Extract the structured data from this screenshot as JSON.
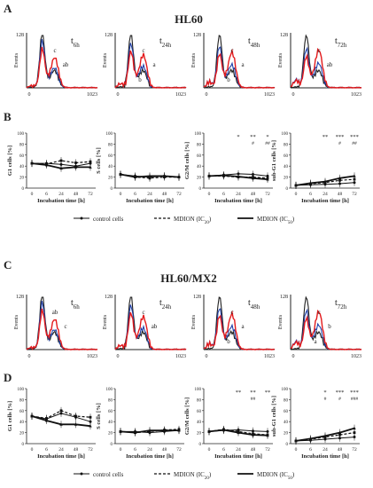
{
  "figure": {
    "panel_letters": [
      "A",
      "B",
      "C",
      "D"
    ],
    "titles": {
      "A": "HL60",
      "C": "HL60/MX2"
    },
    "legend": {
      "items": [
        {
          "label": "control cells",
          "style": "solid-dot"
        },
        {
          "label": "MDION (IC",
          "sub": "20",
          "tail": ")",
          "style": "dashed"
        },
        {
          "label": "MDION (IC",
          "sub": "50",
          "tail": ")",
          "style": "solid-thick"
        }
      ]
    }
  },
  "histograms": {
    "ylabel": "Events",
    "ymax_label": "128",
    "x_left_label": "0",
    "x_right_label": "1023",
    "colors": {
      "control": "#1f1f1f",
      "ic20": "#e31a1c",
      "ic50": "#1f3fa8"
    },
    "timepoints": [
      {
        "main": "t",
        "sub": "6h"
      },
      {
        "main": "t",
        "sub": "24h"
      },
      {
        "main": "t",
        "sub": "48h"
      },
      {
        "main": "t",
        "sub": "72h"
      }
    ],
    "A": [
      {
        "labels": [
          "c",
          "ab"
        ]
      },
      {
        "labels": [
          "c",
          "a",
          "b"
        ]
      },
      {
        "labels": [
          "c",
          "a",
          "b"
        ]
      },
      {
        "labels": [
          "c",
          "ab"
        ]
      }
    ],
    "C": [
      {
        "labels": [
          "ab",
          "c"
        ]
      },
      {
        "labels": [
          "c",
          "ab"
        ]
      },
      {
        "labels": [
          "c",
          "a",
          "b"
        ]
      },
      {
        "labels": [
          "c",
          "b",
          "a"
        ]
      }
    ]
  },
  "chart_data": [
    {
      "type": "line",
      "panel": "B",
      "ylabel": "G1 cells [%]",
      "xlabel": "Incubation time [h]",
      "ylim": [
        0,
        100
      ],
      "yticks": [
        0,
        20,
        40,
        60,
        80,
        100
      ],
      "categories": [
        "0",
        "6",
        "24",
        "48",
        "72"
      ],
      "series": [
        {
          "name": "control cells",
          "values": [
            45,
            45,
            43,
            40,
            45
          ]
        },
        {
          "name": "MDION (IC20)",
          "values": [
            45,
            44,
            50,
            46,
            48
          ]
        },
        {
          "name": "MDION (IC50)",
          "values": [
            45,
            42,
            36,
            38,
            38
          ]
        }
      ],
      "annotations": []
    },
    {
      "type": "line",
      "panel": "B",
      "ylabel": "S cells [%]",
      "xlabel": "Incubation time [h]",
      "ylim": [
        0,
        100
      ],
      "yticks": [
        0,
        20,
        40,
        60,
        80,
        100
      ],
      "categories": [
        "0",
        "6",
        "24",
        "48",
        "72"
      ],
      "series": [
        {
          "name": "control cells",
          "values": [
            25,
            22,
            20,
            22,
            20
          ]
        },
        {
          "name": "MDION (IC20)",
          "values": [
            25,
            20,
            18,
            20,
            20
          ]
        },
        {
          "name": "MDION (IC50)",
          "values": [
            25,
            20,
            22,
            22,
            20
          ]
        }
      ],
      "annotations": []
    },
    {
      "type": "line",
      "panel": "B",
      "ylabel": "G2/M cells [%]",
      "xlabel": "Incubation time [h]",
      "ylim": [
        0,
        100
      ],
      "yticks": [
        0,
        20,
        40,
        60,
        80,
        100
      ],
      "categories": [
        "0",
        "6",
        "24",
        "48",
        "72"
      ],
      "series": [
        {
          "name": "control cells",
          "values": [
            22,
            24,
            26,
            25,
            22
          ]
        },
        {
          "name": "MDION (IC20)",
          "values": [
            22,
            22,
            20,
            20,
            18
          ]
        },
        {
          "name": "MDION (IC50)",
          "values": [
            22,
            23,
            21,
            18,
            16
          ]
        }
      ],
      "annotations": [
        {
          "x_index": 2,
          "top": "*",
          "bottom": ""
        },
        {
          "x_index": 3,
          "top": "**",
          "bottom": "#"
        },
        {
          "x_index": 4,
          "top": "*",
          "bottom": "##"
        }
      ]
    },
    {
      "type": "line",
      "panel": "B",
      "ylabel": "sub-G1 cells [%]",
      "xlabel": "Incubation time [h]",
      "ylim": [
        0,
        100
      ],
      "yticks": [
        0,
        20,
        40,
        60,
        80,
        100
      ],
      "categories": [
        "0",
        "6",
        "24",
        "48",
        "72"
      ],
      "series": [
        {
          "name": "control cells",
          "values": [
            5,
            6,
            7,
            8,
            10
          ]
        },
        {
          "name": "MDION (IC20)",
          "values": [
            5,
            8,
            10,
            14,
            16
          ]
        },
        {
          "name": "MDION (IC50)",
          "values": [
            5,
            9,
            12,
            18,
            22
          ]
        }
      ],
      "annotations": [
        {
          "x_index": 2,
          "top": "**",
          "bottom": ""
        },
        {
          "x_index": 3,
          "top": "***",
          "bottom": "#"
        },
        {
          "x_index": 4,
          "top": "***",
          "bottom": "##"
        }
      ]
    },
    {
      "type": "line",
      "panel": "D",
      "ylabel": "G1 cells [%]",
      "xlabel": "Incubation time [h]",
      "ylim": [
        0,
        100
      ],
      "yticks": [
        0,
        20,
        40,
        60,
        80,
        100
      ],
      "categories": [
        "0",
        "6",
        "24",
        "48",
        "72"
      ],
      "series": [
        {
          "name": "control cells",
          "values": [
            50,
            45,
            55,
            48,
            40
          ]
        },
        {
          "name": "MDION (IC20)",
          "values": [
            50,
            46,
            60,
            50,
            48
          ]
        },
        {
          "name": "MDION (IC50)",
          "values": [
            50,
            42,
            35,
            35,
            32
          ]
        }
      ],
      "annotations": []
    },
    {
      "type": "line",
      "panel": "D",
      "ylabel": "S cells [%]",
      "xlabel": "Incubation time [h]",
      "ylim": [
        0,
        100
      ],
      "yticks": [
        0,
        20,
        40,
        60,
        80,
        100
      ],
      "categories": [
        "0",
        "6",
        "24",
        "48",
        "72"
      ],
      "series": [
        {
          "name": "control cells",
          "values": [
            22,
            22,
            20,
            22,
            24
          ]
        },
        {
          "name": "MDION (IC20)",
          "values": [
            22,
            20,
            22,
            25,
            26
          ]
        },
        {
          "name": "MDION (IC50)",
          "values": [
            22,
            20,
            24,
            24,
            24
          ]
        }
      ],
      "annotations": []
    },
    {
      "type": "line",
      "panel": "D",
      "ylabel": "G2/M cells [%]",
      "xlabel": "Incubation time [h]",
      "ylim": [
        0,
        100
      ],
      "yticks": [
        0,
        20,
        40,
        60,
        80,
        100
      ],
      "categories": [
        "0",
        "6",
        "24",
        "48",
        "72"
      ],
      "series": [
        {
          "name": "control cells",
          "values": [
            22,
            24,
            25,
            23,
            22
          ]
        },
        {
          "name": "MDION (IC20)",
          "values": [
            22,
            26,
            22,
            18,
            16
          ]
        },
        {
          "name": "MDION (IC50)",
          "values": [
            22,
            25,
            20,
            16,
            15
          ]
        }
      ],
      "annotations": [
        {
          "x_index": 2,
          "top": "**",
          "bottom": ""
        },
        {
          "x_index": 3,
          "top": "**",
          "bottom": "##"
        },
        {
          "x_index": 4,
          "top": "**",
          "bottom": ""
        }
      ]
    },
    {
      "type": "line",
      "panel": "D",
      "ylabel": "sub-G1 cells [%]",
      "xlabel": "Incubation time [h]",
      "ylim": [
        0,
        100
      ],
      "yticks": [
        0,
        20,
        40,
        60,
        80,
        100
      ],
      "categories": [
        "0",
        "6",
        "24",
        "48",
        "72"
      ],
      "series": [
        {
          "name": "control cells",
          "values": [
            5,
            6,
            8,
            10,
            12
          ]
        },
        {
          "name": "MDION (IC20)",
          "values": [
            5,
            8,
            12,
            16,
            20
          ]
        },
        {
          "name": "MDION (IC50)",
          "values": [
            5,
            9,
            14,
            20,
            28
          ]
        }
      ],
      "annotations": [
        {
          "x_index": 2,
          "top": "*",
          "bottom": "#"
        },
        {
          "x_index": 3,
          "top": "***",
          "bottom": "#"
        },
        {
          "x_index": 4,
          "top": "***",
          "bottom": "###"
        }
      ]
    }
  ]
}
